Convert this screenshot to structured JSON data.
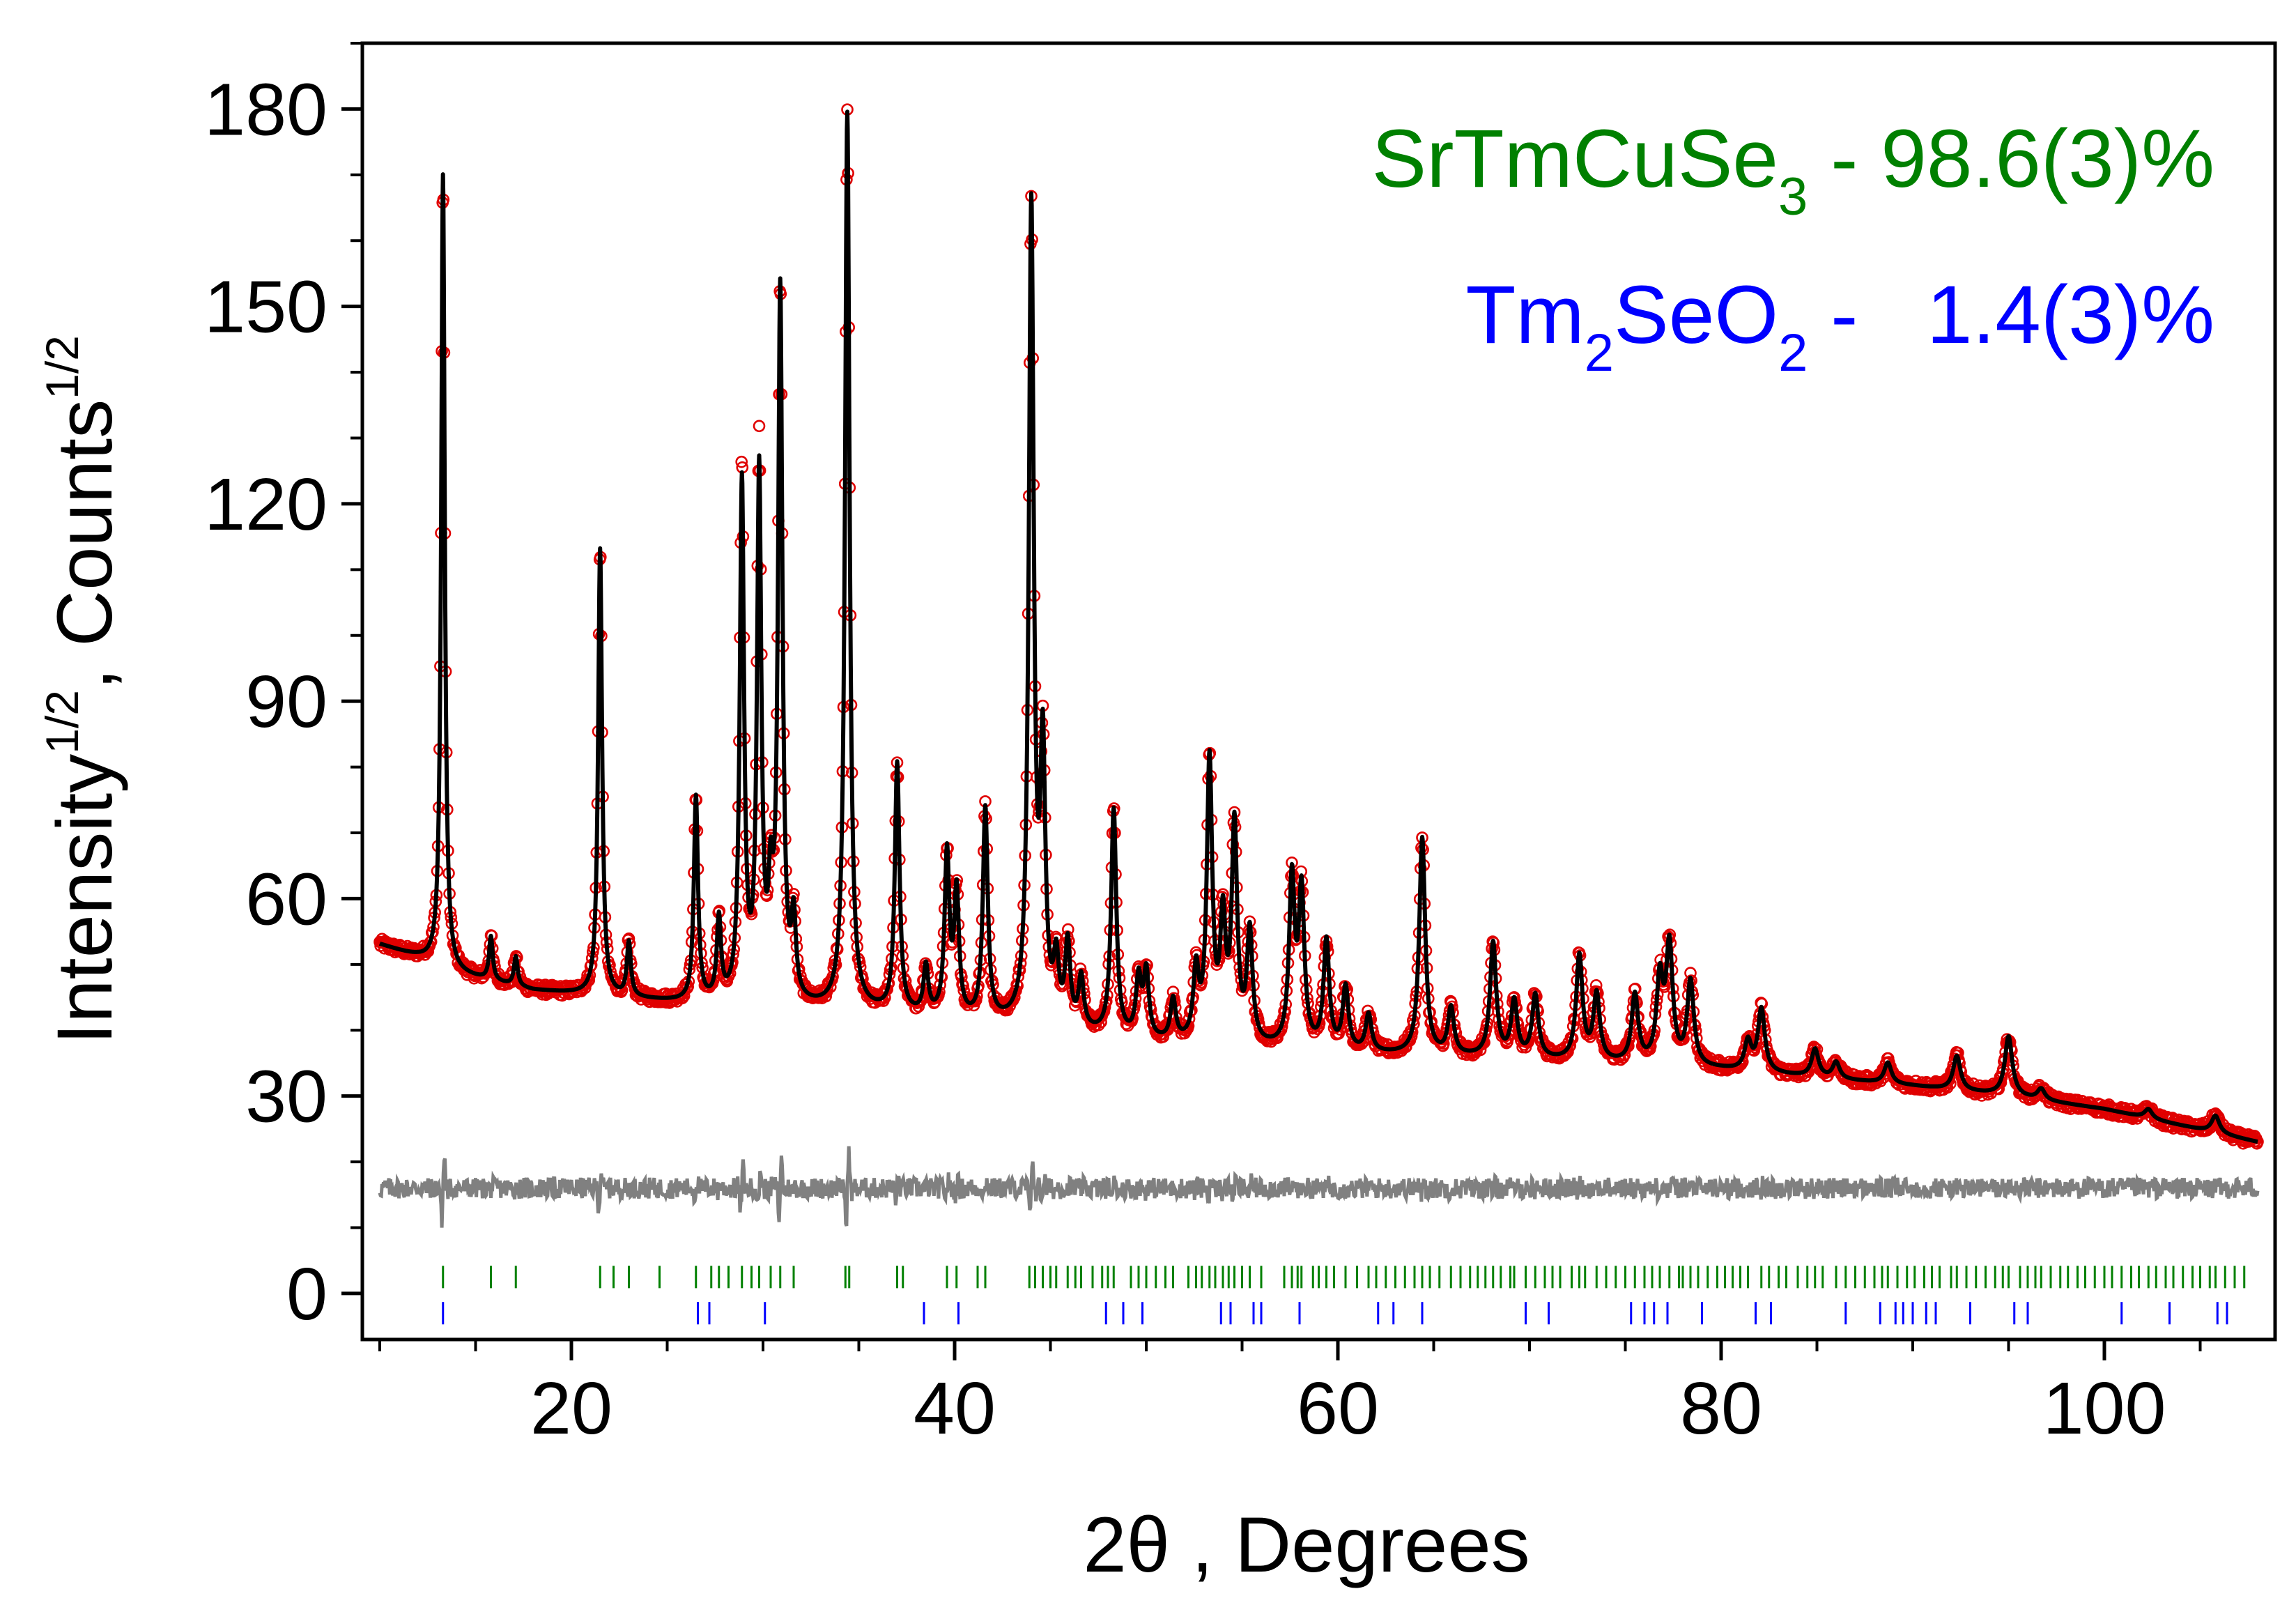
{
  "chart_data": {
    "type": "line",
    "title": "",
    "xlabel": "2θ , Degrees",
    "ylabel_base": "Intensity",
    "ylabel_sup1": "1/2",
    "ylabel_mid": ", Counts",
    "ylabel_sup2": "1/2",
    "xlim": [
      10,
      108
    ],
    "ylim": [
      -7,
      190
    ],
    "x_ticks": [
      20,
      40,
      60,
      80,
      100
    ],
    "x_minor_step": 5,
    "y_ticks": [
      0,
      30,
      60,
      90,
      120,
      150,
      180
    ],
    "y_minor_step": 10,
    "x_tick_labels": [
      "20",
      "40",
      "60",
      "80",
      "100"
    ],
    "y_tick_labels": [
      "0",
      "30",
      "60",
      "90",
      "120",
      "150",
      "180"
    ],
    "legend": [
      {
        "phase": "SrTmCuSe",
        "sub": "3",
        "tail": " - 98.6(3)%",
        "color": "#008000"
      },
      {
        "phase": "Tm",
        "sub": "2",
        "mid": "SeO",
        "sub2": "2",
        "tail": " -   1.4(3)%",
        "color": "#0000ff"
      }
    ],
    "legend_position": "top-right",
    "series": [
      {
        "name": "observed",
        "style": "red open circles",
        "color": "#e00000"
      },
      {
        "name": "calculated",
        "style": "black line",
        "color": "#000000"
      },
      {
        "name": "difference",
        "style": "grey line",
        "color": "#808080",
        "offset": 16
      }
    ],
    "background": [
      [
        10,
        53
      ],
      [
        12,
        51
      ],
      [
        14,
        48.5
      ],
      [
        18,
        46
      ],
      [
        22,
        45
      ],
      [
        26,
        44
      ],
      [
        30,
        43.5
      ],
      [
        36,
        42.5
      ],
      [
        45,
        40
      ],
      [
        50,
        38
      ],
      [
        60,
        36.5
      ],
      [
        70,
        35.5
      ],
      [
        80,
        34
      ],
      [
        90,
        31.5
      ],
      [
        95,
        30
      ],
      [
        100,
        28
      ],
      [
        108,
        23
      ]
    ],
    "peaks": [
      {
        "x": 13.3,
        "h": 170
      },
      {
        "x": 15.8,
        "h": 54
      },
      {
        "x": 17.1,
        "h": 51
      },
      {
        "x": 21.5,
        "h": 113
      },
      {
        "x": 23.0,
        "h": 53
      },
      {
        "x": 26.5,
        "h": 75
      },
      {
        "x": 27.7,
        "h": 56
      },
      {
        "x": 28.9,
        "h": 122
      },
      {
        "x": 29.8,
        "h": 123
      },
      {
        "x": 30.4,
        "h": 57
      },
      {
        "x": 30.9,
        "h": 151
      },
      {
        "x": 31.6,
        "h": 55
      },
      {
        "x": 34.4,
        "h": 179
      },
      {
        "x": 37.0,
        "h": 80
      },
      {
        "x": 38.5,
        "h": 49
      },
      {
        "x": 39.6,
        "h": 66
      },
      {
        "x": 40.1,
        "h": 60
      },
      {
        "x": 41.6,
        "h": 73
      },
      {
        "x": 44.0,
        "h": 164
      },
      {
        "x": 44.6,
        "h": 80
      },
      {
        "x": 45.3,
        "h": 49
      },
      {
        "x": 45.9,
        "h": 52
      },
      {
        "x": 46.6,
        "h": 47
      },
      {
        "x": 48.3,
        "h": 73
      },
      {
        "x": 49.6,
        "h": 47
      },
      {
        "x": 50.0,
        "h": 48
      },
      {
        "x": 51.4,
        "h": 44
      },
      {
        "x": 52.6,
        "h": 48
      },
      {
        "x": 53.3,
        "h": 80
      },
      {
        "x": 54.0,
        "h": 55
      },
      {
        "x": 54.6,
        "h": 70
      },
      {
        "x": 55.4,
        "h": 54
      },
      {
        "x": 57.6,
        "h": 62
      },
      {
        "x": 58.1,
        "h": 60
      },
      {
        "x": 59.4,
        "h": 53
      },
      {
        "x": 60.4,
        "h": 46
      },
      {
        "x": 61.6,
        "h": 42
      },
      {
        "x": 64.4,
        "h": 69
      },
      {
        "x": 65.9,
        "h": 43
      },
      {
        "x": 68.1,
        "h": 53
      },
      {
        "x": 69.2,
        "h": 44
      },
      {
        "x": 70.3,
        "h": 45
      },
      {
        "x": 72.6,
        "h": 51
      },
      {
        "x": 73.5,
        "h": 45
      },
      {
        "x": 75.5,
        "h": 45
      },
      {
        "x": 76.8,
        "h": 47
      },
      {
        "x": 77.3,
        "h": 52
      },
      {
        "x": 78.4,
        "h": 47
      },
      {
        "x": 81.4,
        "h": 38
      },
      {
        "x": 82.1,
        "h": 43
      },
      {
        "x": 84.9,
        "h": 37
      },
      {
        "x": 86.0,
        "h": 35
      },
      {
        "x": 88.7,
        "h": 35
      },
      {
        "x": 92.3,
        "h": 36
      },
      {
        "x": 95.0,
        "h": 39
      },
      {
        "x": 96.7,
        "h": 31
      },
      {
        "x": 102.3,
        "h": 28
      },
      {
        "x": 105.8,
        "h": 27
      }
    ],
    "phase1_reflections": [
      13.3,
      15.8,
      17.1,
      21.5,
      22.2,
      23.0,
      24.6,
      26.5,
      27.3,
      27.7,
      28.2,
      28.9,
      29.4,
      29.8,
      30.4,
      30.9,
      31.6,
      34.3,
      34.5,
      37.0,
      37.3,
      39.6,
      40.1,
      41.2,
      41.6,
      43.9,
      44.2,
      44.6,
      45.0,
      45.3,
      45.9,
      46.3,
      46.6,
      47.2,
      47.7,
      48.0,
      48.3,
      49.2,
      49.6,
      50.0,
      50.5,
      51.0,
      51.4,
      52.2,
      52.6,
      52.9,
      53.3,
      53.6,
      54.0,
      54.3,
      54.6,
      55.0,
      55.4,
      56.0,
      57.2,
      57.6,
      57.9,
      58.1,
      58.7,
      59.0,
      59.4,
      59.8,
      60.4,
      61.0,
      61.6,
      62.0,
      62.5,
      63.0,
      63.5,
      64.0,
      64.4,
      64.8,
      65.3,
      65.9,
      66.4,
      66.9,
      67.3,
      67.7,
      68.1,
      68.5,
      69.0,
      69.2,
      69.8,
      70.3,
      70.8,
      71.2,
      71.6,
      72.2,
      72.6,
      72.9,
      73.5,
      74.0,
      74.5,
      75.0,
      75.5,
      76.0,
      76.4,
      76.8,
      77.3,
      77.8,
      78.0,
      78.4,
      78.8,
      79.3,
      79.8,
      80.2,
      80.6,
      81.0,
      81.4,
      82.1,
      82.5,
      83.0,
      83.4,
      84.0,
      84.5,
      84.9,
      85.3,
      86.0,
      86.5,
      87.0,
      87.5,
      88.0,
      88.4,
      88.7,
      89.2,
      89.7,
      90.1,
      90.6,
      91.0,
      91.4,
      92.0,
      92.3,
      92.8,
      93.3,
      93.8,
      94.3,
      94.7,
      95.0,
      95.6,
      96.0,
      96.4,
      96.7,
      97.2,
      97.7,
      98.1,
      98.6,
      99.0,
      99.5,
      100.0,
      100.4,
      100.9,
      101.4,
      101.8,
      102.3,
      102.7,
      103.2,
      103.6,
      104.1,
      104.6,
      105.0,
      105.5,
      105.8,
      106.3,
      106.8,
      107.3
    ],
    "phase2_reflections": [
      13.3,
      26.6,
      27.2,
      30.1,
      38.4,
      40.2,
      47.9,
      48.8,
      49.8,
      53.9,
      54.4,
      55.6,
      56.0,
      58.0,
      62.1,
      62.9,
      64.4,
      69.8,
      71.0,
      75.3,
      76.0,
      76.5,
      77.2,
      79.0,
      81.8,
      82.6,
      86.5,
      88.3,
      89.1,
      89.5,
      90.0,
      90.7,
      91.2,
      93.0,
      95.3,
      96.0,
      100.9,
      103.4,
      105.9,
      106.4
    ]
  }
}
